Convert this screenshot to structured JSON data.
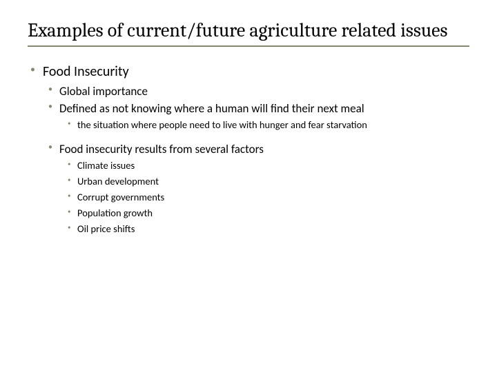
{
  "colors": {
    "underline": "#8a866e",
    "bullet": "#8a866e",
    "text": "#000000",
    "background": "#ffffff"
  },
  "typography": {
    "title_font": "Cambria, Georgia, serif",
    "body_font": "Calibri, Segoe UI, Arial, sans-serif",
    "title_size_pt": 28,
    "lvl1_size_pt": 20,
    "lvl2_size_pt": 17,
    "lvl3_size_pt": 14.5
  },
  "title": "Examples of current/future agriculture related issues",
  "body": {
    "item1": {
      "text": "Food Insecurity",
      "sub1": "Global importance",
      "sub2": "Defined as not knowing where a human will find their next meal",
      "sub2_detail": "the situation where people need to live with hunger and fear starvation",
      "sub3": "Food insecurity results from several factors",
      "factors": {
        "f1": "Climate issues",
        "f2": "Urban development",
        "f3": "Corrupt governments",
        "f4": "Population growth",
        "f5": "Oil price shifts"
      }
    }
  }
}
